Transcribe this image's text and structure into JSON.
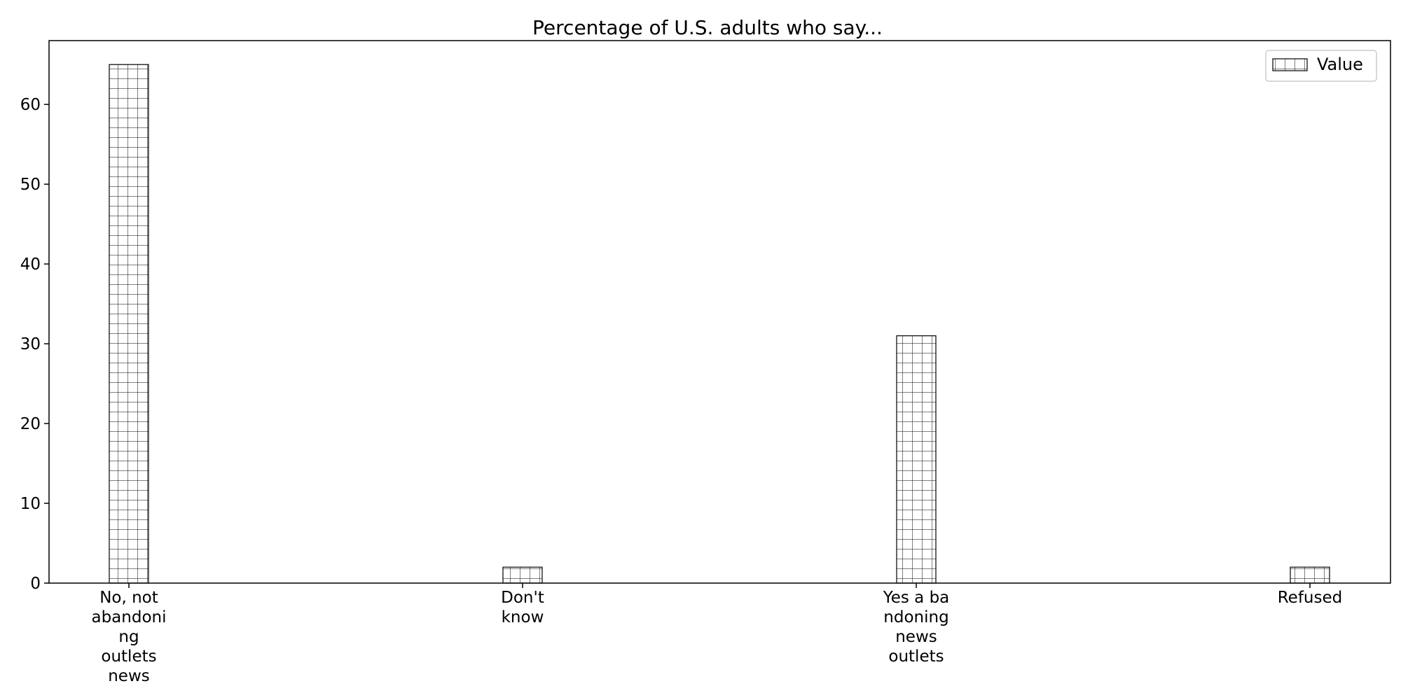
{
  "chart_data": {
    "type": "bar",
    "title": "Percentage of U.S. adults who say...",
    "xlabel": "",
    "ylabel": "",
    "categories": [
      [
        "No, not",
        "abandoni",
        "ng",
        "outlets",
        "news"
      ],
      [
        "Don't",
        "know"
      ],
      [
        "Yes a ba",
        "ndoning",
        "news",
        "outlets"
      ],
      [
        "Refused"
      ]
    ],
    "series": [
      {
        "name": "Value",
        "values": [
          65,
          2,
          31,
          2
        ]
      }
    ],
    "ylim": [
      0,
      68
    ],
    "yticks": [
      0,
      10,
      20,
      30,
      40,
      50,
      60
    ],
    "grid": false,
    "legend_position": "top-right",
    "hatch": "grid",
    "colors": {
      "bar_fill": "#ffffff",
      "bar_edge": "#000000",
      "axis": "#000000"
    }
  }
}
